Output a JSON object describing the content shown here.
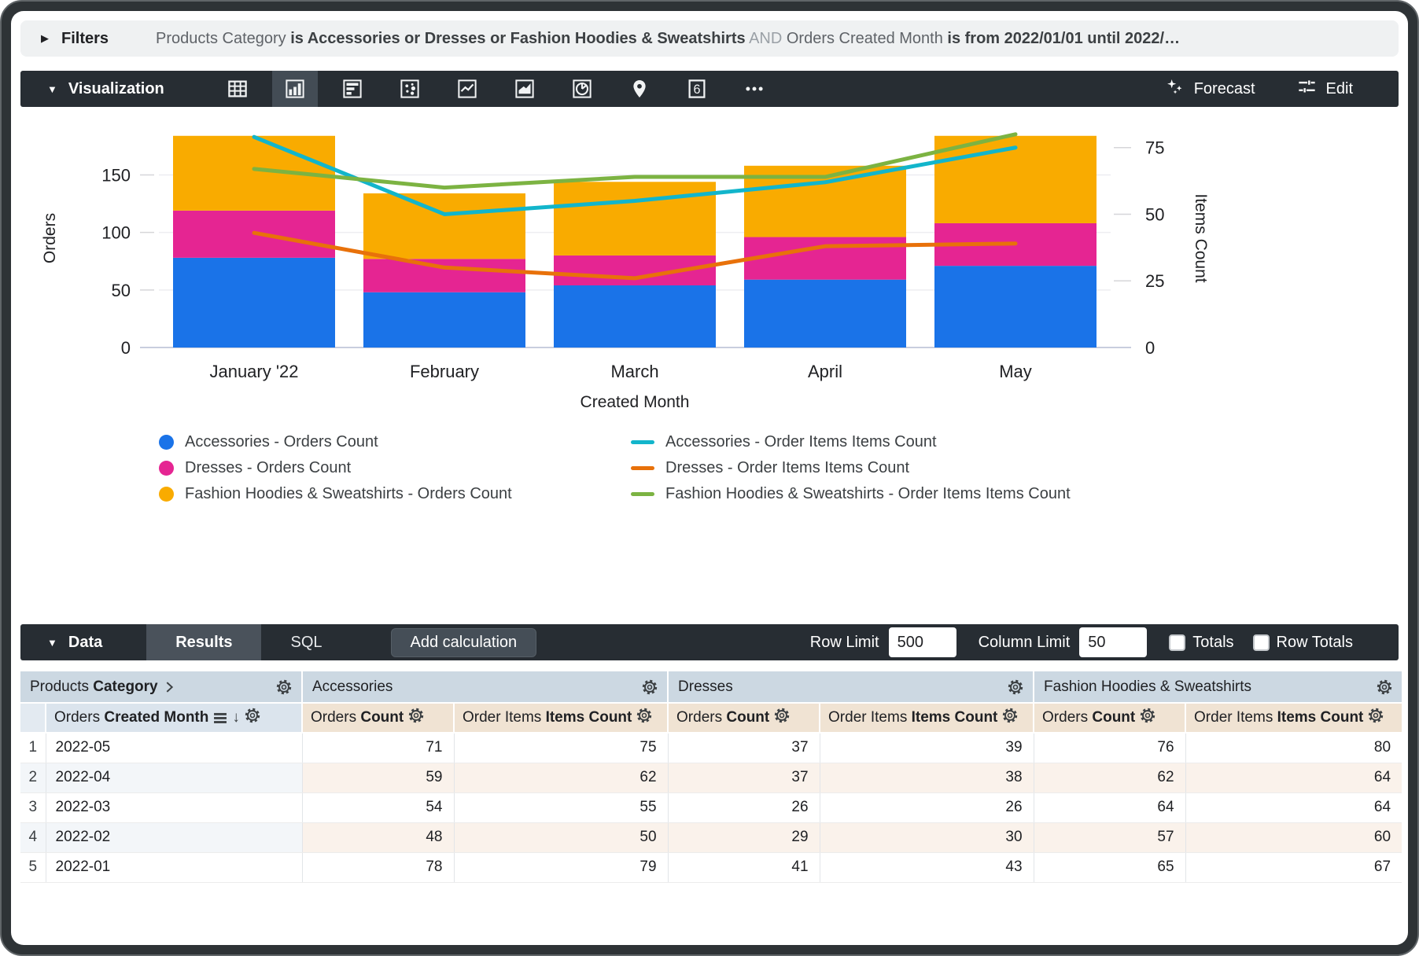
{
  "filters": {
    "label": "Filters",
    "expand_icon": "right-triangle",
    "parts": [
      {
        "text": "Products Category ",
        "style": "normal"
      },
      {
        "text": "is Accessories or Dresses or Fashion Hoodies & Sweatshirts",
        "style": "bold"
      },
      {
        "text": " AND ",
        "style": "dim"
      },
      {
        "text": "Orders Created Month ",
        "style": "normal"
      },
      {
        "text": "is from 2022/01/01 until 2022/…",
        "style": "bold"
      }
    ]
  },
  "viz_toolbar": {
    "label": "Visualization",
    "icons": [
      "table",
      "column-chart",
      "bar-chart",
      "scatter-chart",
      "line-chart",
      "area-chart",
      "pie-chart",
      "map-pin",
      "single-value",
      "more"
    ],
    "selected_icon": "column-chart",
    "single_value_glyph": "6",
    "forecast_label": "Forecast",
    "edit_label": "Edit"
  },
  "chart_data": {
    "type": "bar",
    "subtype": "stacked-column-with-lines-dual-axis",
    "categories": [
      "January '22",
      "February",
      "March",
      "April",
      "May"
    ],
    "bar_series": [
      {
        "name": "Accessories - Orders Count",
        "color": "#1A73E8",
        "values": [
          78,
          48,
          54,
          59,
          71
        ]
      },
      {
        "name": "Dresses - Orders Count",
        "color": "#E52592",
        "values": [
          41,
          29,
          26,
          37,
          37
        ]
      },
      {
        "name": "Fashion Hoodies & Sweatshirts - Orders Count",
        "color": "#F9AB00",
        "values": [
          65,
          57,
          64,
          62,
          76
        ]
      }
    ],
    "line_series": [
      {
        "name": "Accessories - Order Items Items Count",
        "color": "#12B5CB",
        "values": [
          79,
          50,
          55,
          62,
          75
        ]
      },
      {
        "name": "Dresses - Order Items Items Count",
        "color": "#E8710A",
        "values": [
          43,
          30,
          26,
          38,
          39
        ]
      },
      {
        "name": "Fashion Hoodies & Sweatshirts - Order Items Items Count",
        "color": "#7CB342",
        "values": [
          67,
          60,
          64,
          64,
          80
        ]
      }
    ],
    "xlabel": "Created Month",
    "ylabel_left": "Orders",
    "ylabel_right": "Items Count",
    "left_ticks": [
      0,
      50,
      100,
      150
    ],
    "right_ticks": [
      0,
      25,
      50,
      75
    ],
    "left_max": 190,
    "right_max": 82,
    "grid": true,
    "legend_position": "bottom"
  },
  "data_toolbar": {
    "label": "Data",
    "tabs": [
      {
        "label": "Results",
        "selected": true
      },
      {
        "label": "SQL",
        "selected": false
      }
    ],
    "add_calculation_label": "Add calculation",
    "row_limit_label": "Row Limit",
    "row_limit_value": "500",
    "column_limit_label": "Column Limit",
    "column_limit_value": "50",
    "totals_label": "Totals",
    "totals_checked": false,
    "row_totals_label": "Row Totals",
    "row_totals_checked": false
  },
  "table": {
    "pivot_label": {
      "normal": "Products ",
      "bold": "Category"
    },
    "pivot_groups": [
      "Accessories",
      "Dresses",
      "Fashion Hoodies & Sweatshirts"
    ],
    "dimension_header": {
      "normal": "Orders ",
      "bold": "Created Month"
    },
    "measure_headers": [
      {
        "normal": "Orders ",
        "bold": "Count"
      },
      {
        "normal": "Order Items ",
        "bold": "Items Count"
      }
    ],
    "rows": [
      {
        "n": "1",
        "month": "2022-05",
        "values": [
          71,
          75,
          37,
          39,
          76,
          80
        ]
      },
      {
        "n": "2",
        "month": "2022-04",
        "values": [
          59,
          62,
          37,
          38,
          62,
          64
        ]
      },
      {
        "n": "3",
        "month": "2022-03",
        "values": [
          54,
          55,
          26,
          26,
          64,
          64
        ]
      },
      {
        "n": "4",
        "month": "2022-02",
        "values": [
          48,
          50,
          29,
          30,
          57,
          60
        ]
      },
      {
        "n": "5",
        "month": "2022-01",
        "values": [
          78,
          79,
          41,
          43,
          65,
          67
        ]
      }
    ]
  }
}
